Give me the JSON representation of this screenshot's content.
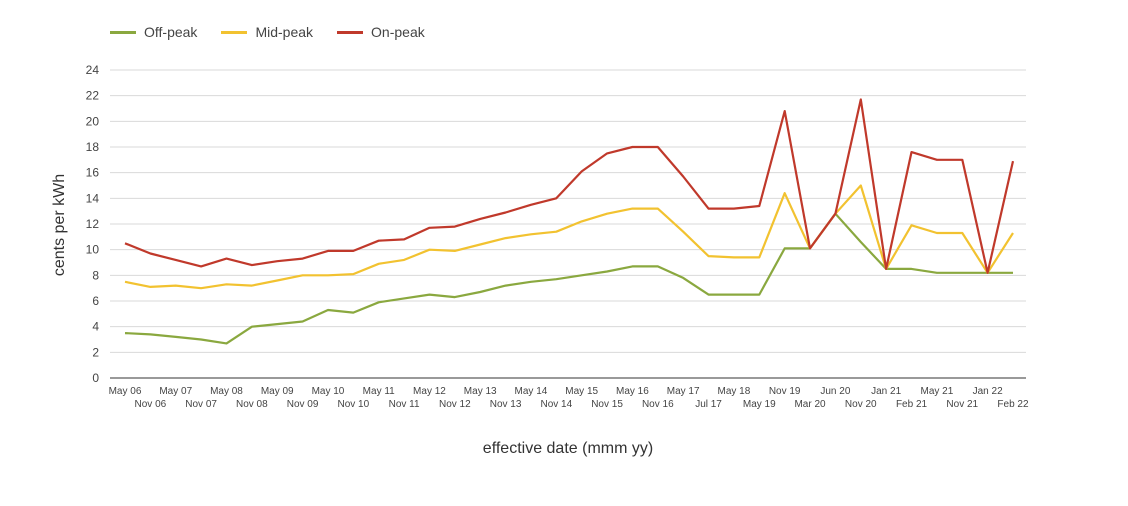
{
  "chart_data": {
    "type": "line",
    "xlabel": "effective date (mmm yy)",
    "ylabel": "cents per kWh",
    "ylim": [
      0,
      24
    ],
    "yticks": [
      0,
      2,
      4,
      6,
      8,
      10,
      12,
      14,
      16,
      18,
      20,
      22,
      24
    ],
    "grid": true,
    "legend_position": "top-left",
    "categories": [
      "May 06",
      "Nov 06",
      "May 07",
      "Nov 07",
      "May 08",
      "Nov 08",
      "May 09",
      "Nov 09",
      "May 10",
      "Nov 10",
      "May 11",
      "Nov 11",
      "May 12",
      "Nov 12",
      "May 13",
      "Nov 13",
      "May 14",
      "Nov 14",
      "May 15",
      "Nov 15",
      "May 16",
      "Nov 16",
      "May 17",
      "Jul 17",
      "May 18",
      "May 19",
      "Nov 19",
      "Mar 20",
      "Jun 20",
      "Nov 20",
      "Jan 21",
      "Feb 21",
      "May 21",
      "Nov 21",
      "Jan 22",
      "Feb 22"
    ],
    "series": [
      {
        "name": "Off-peak",
        "color": "#8aa83f",
        "values": [
          3.5,
          3.4,
          3.2,
          3.0,
          2.7,
          4.0,
          4.2,
          4.4,
          5.3,
          5.1,
          5.9,
          6.2,
          6.5,
          6.3,
          6.7,
          7.2,
          7.5,
          7.7,
          8.0,
          8.3,
          8.7,
          8.7,
          7.8,
          6.5,
          6.5,
          6.5,
          10.1,
          10.1,
          12.8,
          10.6,
          8.5,
          8.5,
          8.2,
          8.2,
          8.2,
          8.2
        ]
      },
      {
        "name": "Mid-peak",
        "color": "#f2c230",
        "values": [
          7.5,
          7.1,
          7.2,
          7.0,
          7.3,
          7.2,
          7.6,
          8.0,
          8.0,
          8.1,
          8.9,
          9.2,
          10.0,
          9.9,
          10.4,
          10.9,
          11.2,
          11.4,
          12.2,
          12.8,
          13.2,
          13.2,
          11.4,
          9.5,
          9.4,
          9.4,
          14.4,
          10.1,
          12.8,
          15.0,
          8.5,
          11.9,
          11.3,
          11.3,
          8.2,
          11.3
        ]
      },
      {
        "name": "On-peak",
        "color": "#c0392b",
        "values": [
          10.5,
          9.7,
          9.2,
          8.7,
          9.3,
          8.8,
          9.1,
          9.3,
          9.9,
          9.9,
          10.7,
          10.8,
          11.7,
          11.8,
          12.4,
          12.9,
          13.5,
          14.0,
          16.1,
          17.5,
          18.0,
          18.0,
          15.7,
          13.2,
          13.2,
          13.4,
          20.8,
          10.1,
          12.8,
          21.7,
          8.5,
          17.6,
          17.0,
          17.0,
          8.2,
          16.9
        ]
      }
    ]
  }
}
